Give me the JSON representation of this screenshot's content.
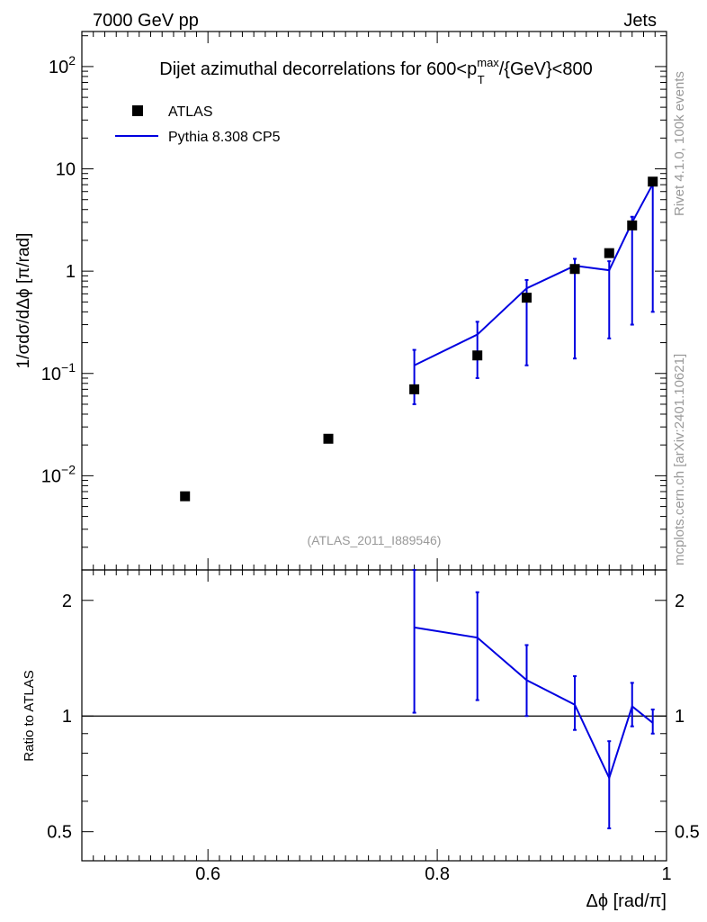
{
  "header": {
    "left": "7000 GeV pp",
    "right": "Jets"
  },
  "side_text": {
    "rivet": "Rivet 4.1.0,  100k events",
    "mcplots": "mcplots.cern.ch [arXiv:2401.10621]"
  },
  "colors": {
    "data": "#000000",
    "mc": "#0000e0",
    "watermark": "#999999"
  },
  "chart_data": [
    {
      "type": "scatter",
      "panel": "main",
      "title_prefix": "Dijet azimuthal decorrelations for 600<p",
      "title_sup": "max",
      "title_sub": "T",
      "title_suffix": "/{GeV}<800",
      "ylabel": "1/σdσ/dΔϕ [π/rad]",
      "xlim": [
        0.49,
        1.0
      ],
      "ylim": [
        0.0012,
        220
      ],
      "log_y": true,
      "yticks": [
        {
          "value": 0.01,
          "base": "10",
          "exp": "−2"
        },
        {
          "value": 0.1,
          "base": "10",
          "exp": "−1"
        },
        {
          "value": 1,
          "base": "1",
          "exp": ""
        },
        {
          "value": 10,
          "base": "10",
          "exp": ""
        },
        {
          "value": 100,
          "base": "10",
          "exp": "2"
        }
      ],
      "legend": {
        "placement": "top-left",
        "entries": [
          "ATLAS",
          "Pythia 8.308 CP5"
        ]
      },
      "watermark": "(ATLAS_2011_I889546)",
      "series": [
        {
          "name": "ATLAS",
          "style": "markers",
          "x": [
            0.58,
            0.705,
            0.78,
            0.835,
            0.878,
            0.92,
            0.95,
            0.97,
            0.988
          ],
          "y": [
            0.0063,
            0.023,
            0.07,
            0.15,
            0.55,
            1.05,
            1.5,
            2.8,
            7.5
          ]
        },
        {
          "name": "Pythia 8.308 CP5",
          "style": "line",
          "x": [
            0.78,
            0.835,
            0.878,
            0.92,
            0.95,
            0.97,
            0.988
          ],
          "y": [
            0.12,
            0.24,
            0.68,
            1.13,
            1.02,
            3.0,
            7.1
          ],
          "y_err_low": [
            0.05,
            0.09,
            0.12,
            0.14,
            0.22,
            0.3,
            0.4
          ],
          "y_err_high": [
            0.17,
            0.32,
            0.82,
            1.32,
            1.25,
            3.4,
            7.6
          ]
        }
      ]
    },
    {
      "type": "line",
      "panel": "ratio",
      "ylabel": "Ratio to ATLAS",
      "xlabel": "Δϕ [rad/π]",
      "xlim": [
        0.49,
        1.0
      ],
      "ylim": [
        0.42,
        2.4
      ],
      "log_y": true,
      "yticks": [
        {
          "value": 0.5,
          "label": "0.5"
        },
        {
          "value": 1,
          "label": "1"
        },
        {
          "value": 2,
          "label": "2"
        }
      ],
      "xticks": [
        {
          "value": 0.6,
          "label": "0.6"
        },
        {
          "value": 0.8,
          "label": "0.8"
        },
        {
          "value": 1.0,
          "label": "1"
        }
      ],
      "reference_line": 1,
      "series": [
        {
          "name": "Pythia 8.308 CP5",
          "x": [
            0.78,
            0.835,
            0.878,
            0.92,
            0.95,
            0.97,
            0.988
          ],
          "y": [
            1.7,
            1.6,
            1.24,
            1.07,
            0.69,
            1.06,
            0.96
          ],
          "y_err_low": [
            1.02,
            1.1,
            1.0,
            0.92,
            0.51,
            0.94,
            0.9
          ],
          "y_err_high": [
            2.4,
            2.1,
            1.53,
            1.27,
            0.86,
            1.22,
            1.04
          ]
        }
      ]
    }
  ]
}
